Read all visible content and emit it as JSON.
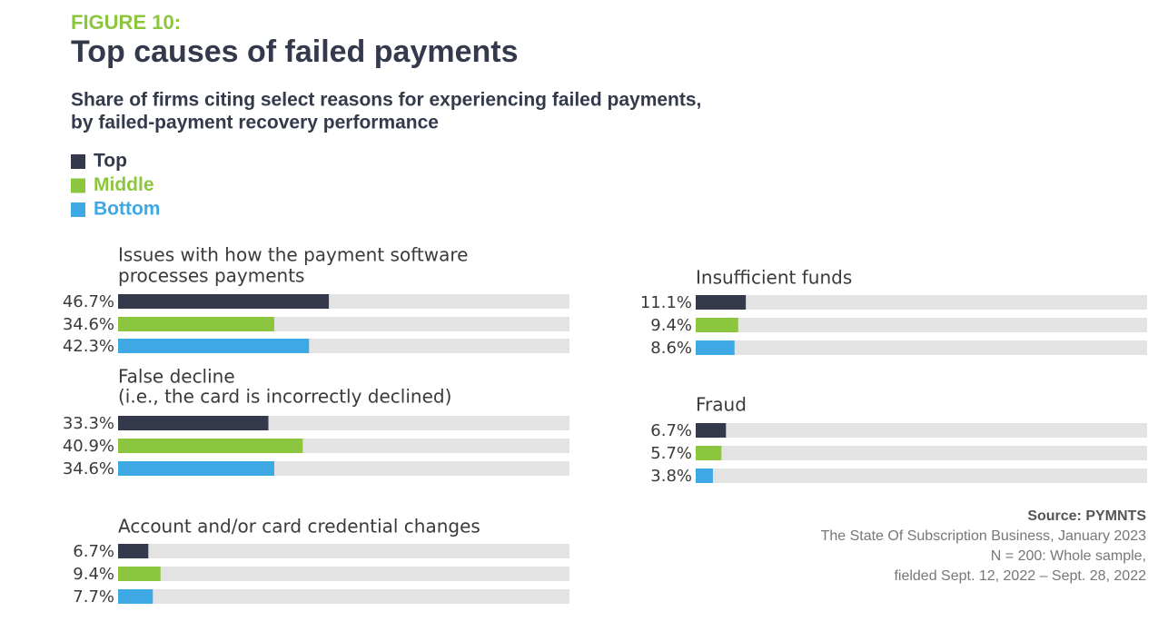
{
  "chart_data": {
    "type": "bar",
    "figure_label": "FIGURE 10:",
    "title": "Top causes of failed payments",
    "subtitle": [
      "Share of firms citing select reasons for experiencing failed payments,",
      "by failed-payment recovery performance"
    ],
    "xlim": [
      0,
      100
    ],
    "track_color": "#e3e3e3",
    "categories": [
      [
        "Issues with how the payment software",
        "processes payments"
      ],
      [
        "False decline",
        "(i.e., the card is incorrectly declined)"
      ],
      [
        "Account and/or card credential changes"
      ],
      [
        "Insufficient funds"
      ],
      [
        "Fraud"
      ]
    ],
    "series": [
      {
        "name": "Top",
        "color": "#343a4c",
        "values": [
          46.7,
          33.3,
          6.7,
          11.1,
          6.7
        ],
        "value_labels": [
          "46.7%",
          "33.3%",
          "6.7%",
          "11.1%",
          "6.7%"
        ]
      },
      {
        "name": "Middle",
        "color": "#8cc63f",
        "values": [
          34.6,
          40.9,
          9.4,
          9.4,
          5.7
        ],
        "value_labels": [
          "34.6%",
          "40.9%",
          "9.4%",
          "9.4%",
          "5.7%"
        ]
      },
      {
        "name": "Bottom",
        "color": "#3ea8e5",
        "values": [
          42.3,
          34.6,
          7.7,
          8.6,
          3.8
        ],
        "value_labels": [
          "42.3%",
          "34.6%",
          "7.7%",
          "8.6%",
          "3.8%"
        ]
      }
    ],
    "source": {
      "label": "Source: PYMNTS",
      "lines": [
        "The State Of Subscription Business, January 2023",
        "N = 200: Whole sample,",
        "fielded Sept. 12, 2022 – Sept. 28, 2022"
      ]
    }
  }
}
